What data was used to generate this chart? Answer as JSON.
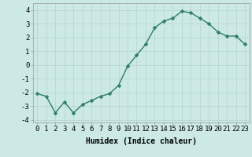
{
  "x": [
    0,
    1,
    2,
    3,
    4,
    5,
    6,
    7,
    8,
    9,
    10,
    11,
    12,
    13,
    14,
    15,
    16,
    17,
    18,
    19,
    20,
    21,
    22,
    23
  ],
  "y": [
    -2.1,
    -2.3,
    -3.5,
    -2.7,
    -3.5,
    -2.9,
    -2.6,
    -2.3,
    -2.1,
    -1.5,
    -0.1,
    0.7,
    1.5,
    2.7,
    3.2,
    3.4,
    3.9,
    3.8,
    3.4,
    3.0,
    2.4,
    2.1,
    2.1,
    1.5
  ],
  "line_color": "#2e7d6e",
  "marker": "D",
  "marker_size": 2.5,
  "bg_color": "#cce9e5",
  "grid_color": "#b8d8d4",
  "xlabel": "Humidex (Indice chaleur)",
  "xlim": [
    -0.5,
    23.5
  ],
  "ylim": [
    -4.2,
    4.5
  ],
  "yticks": [
    -4,
    -3,
    -2,
    -1,
    0,
    1,
    2,
    3,
    4
  ],
  "xtick_labels": [
    "0",
    "1",
    "2",
    "3",
    "4",
    "5",
    "6",
    "7",
    "8",
    "9",
    "10",
    "11",
    "12",
    "13",
    "14",
    "15",
    "16",
    "17",
    "18",
    "19",
    "20",
    "21",
    "22",
    "23"
  ],
  "xlabel_fontsize": 7,
  "tick_fontsize": 6.5,
  "line_width": 1.0,
  "grid_linewidth": 0.6
}
